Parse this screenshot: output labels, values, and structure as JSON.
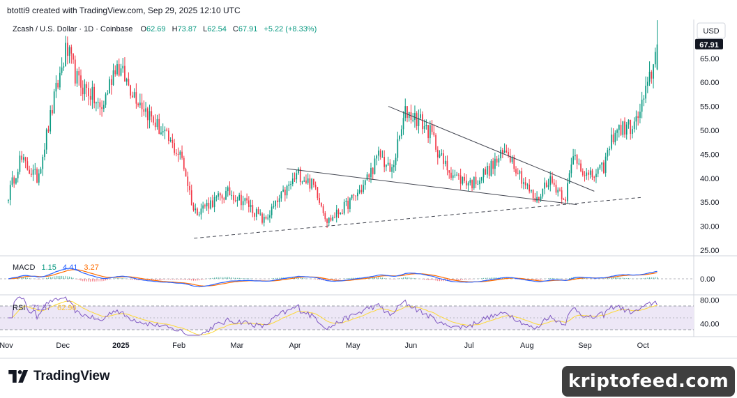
{
  "credit": "btotti9 created with TradingView.com, Sep 29, 2025 12:10 UTC",
  "header": {
    "symbol": "Zcash / U.S. Dollar · 1D · Coinbase",
    "open_label": "O",
    "open": "62.69",
    "high_label": "H",
    "high": "73.87",
    "low_label": "L",
    "low": "62.54",
    "close_label": "C",
    "close": "67.91",
    "change": "+5.22 (+8.33%)"
  },
  "currency_button": "USD",
  "price_tag": "67.91",
  "macd_legend": {
    "name": "MACD",
    "v1": "1.15",
    "v2": "4.41",
    "v3": "3.27"
  },
  "rsi_legend": {
    "name": "RSI",
    "v1": "71.57",
    "v2": "62.96"
  },
  "colors": {
    "up": "#089981",
    "down": "#f23645",
    "macd": "#2962ff",
    "signal": "#ff6d00",
    "rsi": "#7e57c2",
    "rsi_ma": "#fdd835",
    "rsi_band": "#ede7f6"
  },
  "brand": "TradingView",
  "watermark": "kriptofeed.com",
  "chart_data": {
    "type": "candlestick",
    "title": "Zcash / U.S. Dollar · 1D · Coinbase",
    "price_axis": {
      "ticks": [
        "65.00",
        "60.00",
        "55.00",
        "50.00",
        "45.00",
        "40.00",
        "35.00",
        "30.00",
        "25.00"
      ],
      "ylim": [
        24,
        75
      ]
    },
    "time_axis": {
      "ticks": [
        "Nov",
        "Dec",
        "2025",
        "Feb",
        "Mar",
        "Apr",
        "May",
        "Jun",
        "Jul",
        "Aug",
        "Sep",
        "Oct"
      ],
      "bold": [
        "2025"
      ]
    },
    "price_path": [
      {
        "month": 0.0,
        "price": 36.5
      },
      {
        "month": 0.2,
        "price": 44
      },
      {
        "month": 0.5,
        "price": 40
      },
      {
        "month": 0.8,
        "price": 57
      },
      {
        "month": 1.0,
        "price": 67
      },
      {
        "month": 1.2,
        "price": 60
      },
      {
        "month": 1.4,
        "price": 58
      },
      {
        "month": 1.6,
        "price": 54
      },
      {
        "month": 1.85,
        "price": 64
      },
      {
        "month": 2.1,
        "price": 59
      },
      {
        "month": 2.5,
        "price": 52
      },
      {
        "month": 3.0,
        "price": 44
      },
      {
        "month": 3.2,
        "price": 33
      },
      {
        "month": 3.5,
        "price": 35
      },
      {
        "month": 3.8,
        "price": 37
      },
      {
        "month": 4.1,
        "price": 35
      },
      {
        "month": 4.4,
        "price": 31
      },
      {
        "month": 4.7,
        "price": 36
      },
      {
        "month": 5.0,
        "price": 41
      },
      {
        "month": 5.3,
        "price": 38
      },
      {
        "month": 5.5,
        "price": 31
      },
      {
        "month": 5.8,
        "price": 34
      },
      {
        "month": 6.1,
        "price": 38
      },
      {
        "month": 6.4,
        "price": 45
      },
      {
        "month": 6.6,
        "price": 41
      },
      {
        "month": 6.85,
        "price": 54
      },
      {
        "month": 7.1,
        "price": 52
      },
      {
        "month": 7.3,
        "price": 49
      },
      {
        "month": 7.5,
        "price": 43
      },
      {
        "month": 7.75,
        "price": 40
      },
      {
        "month": 8.0,
        "price": 39
      },
      {
        "month": 8.3,
        "price": 42
      },
      {
        "month": 8.6,
        "price": 46
      },
      {
        "month": 8.9,
        "price": 39
      },
      {
        "month": 9.1,
        "price": 35
      },
      {
        "month": 9.3,
        "price": 40
      },
      {
        "month": 9.6,
        "price": 36
      },
      {
        "month": 9.75,
        "price": 45
      },
      {
        "month": 10.0,
        "price": 40
      },
      {
        "month": 10.25,
        "price": 42
      },
      {
        "month": 10.45,
        "price": 50
      },
      {
        "month": 10.8,
        "price": 51
      },
      {
        "month": 11.0,
        "price": 58
      },
      {
        "month": 11.2,
        "price": 68
      }
    ],
    "last_candle": {
      "open": 62.69,
      "high": 73.87,
      "low": 62.54,
      "close": 67.91
    },
    "annotations": [
      {
        "kind": "upper-wedge-line",
        "from": {
          "month": 4.8,
          "price": 42
        },
        "to": {
          "month": 9.8,
          "price": 34.5
        }
      },
      {
        "kind": "descending-trendline",
        "from": {
          "month": 6.55,
          "price": 55
        },
        "to": {
          "month": 10.1,
          "price": 37.3
        }
      },
      {
        "kind": "dashed-support",
        "from": {
          "month": 3.2,
          "price": 27.5
        },
        "to": {
          "month": 10.9,
          "price": 36
        }
      }
    ],
    "macd": {
      "ticks": [
        "0.00"
      ],
      "last": {
        "macd": 1.15,
        "signal": 4.41,
        "hist": 3.27
      }
    },
    "rsi": {
      "ticks": [
        "80.00",
        "40.00"
      ],
      "band": [
        30,
        70
      ],
      "last": {
        "rsi": 71.57,
        "ma": 62.96
      }
    },
    "grid": false
  }
}
